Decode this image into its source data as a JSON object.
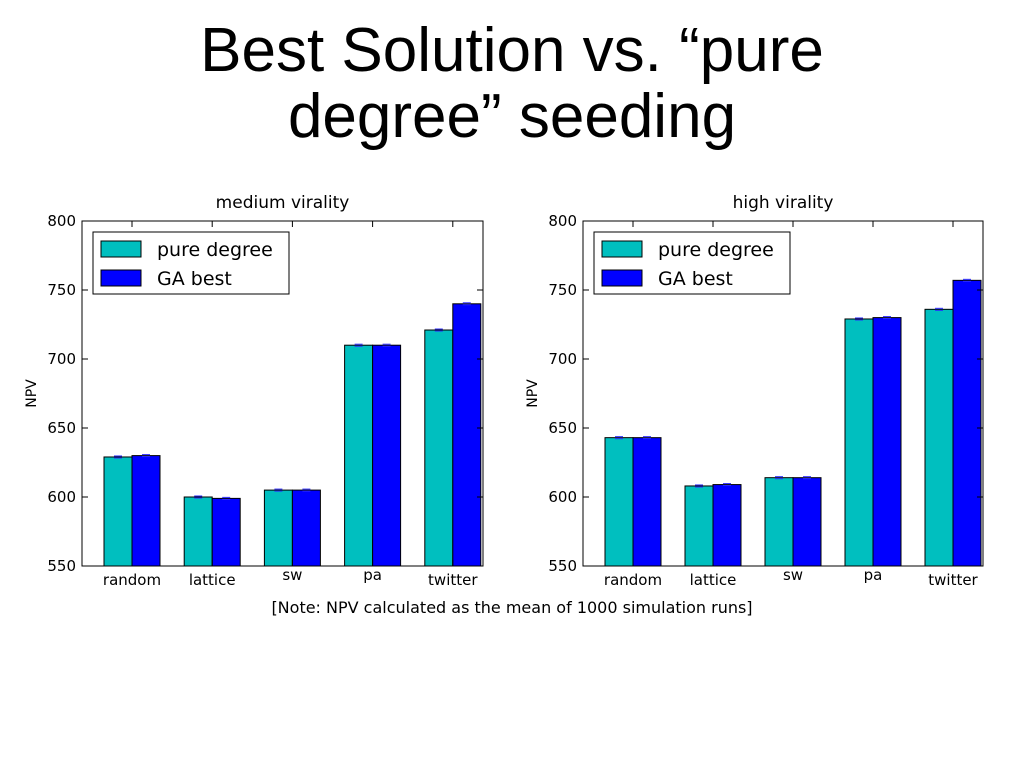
{
  "slide": {
    "title_line1": "Best Solution vs. “pure",
    "title_line2": "degree” seeding",
    "note": "[Note: NPV calculated as the mean of 1000 simulation runs]"
  },
  "colors": {
    "pure_degree": "#00bfbf",
    "ga_best": "#0000ff",
    "error_bar": "#2a2aff"
  },
  "chart_data": [
    {
      "type": "bar",
      "title": "medium virality",
      "xlabel": "",
      "ylabel": "NPV",
      "categories": [
        "random",
        "lattice",
        "sw",
        "pa",
        "twitter"
      ],
      "ylim": [
        550,
        800
      ],
      "yticks": [
        550,
        600,
        650,
        700,
        750,
        800
      ],
      "legend": "top-left",
      "grid": false,
      "series": [
        {
          "name": "pure degree",
          "values": [
            629,
            600,
            605,
            710,
            721
          ]
        },
        {
          "name": "GA best",
          "values": [
            630,
            599,
            605,
            710,
            740
          ]
        }
      ]
    },
    {
      "type": "bar",
      "title": "high virality",
      "xlabel": "",
      "ylabel": "NPV",
      "categories": [
        "random",
        "lattice",
        "sw",
        "pa",
        "twitter"
      ],
      "ylim": [
        550,
        800
      ],
      "yticks": [
        550,
        600,
        650,
        700,
        750,
        800
      ],
      "legend": "top-left",
      "grid": false,
      "series": [
        {
          "name": "pure degree",
          "values": [
            643,
            608,
            614,
            729,
            736
          ]
        },
        {
          "name": "GA best",
          "values": [
            643,
            609,
            614,
            730,
            757
          ]
        }
      ]
    }
  ]
}
